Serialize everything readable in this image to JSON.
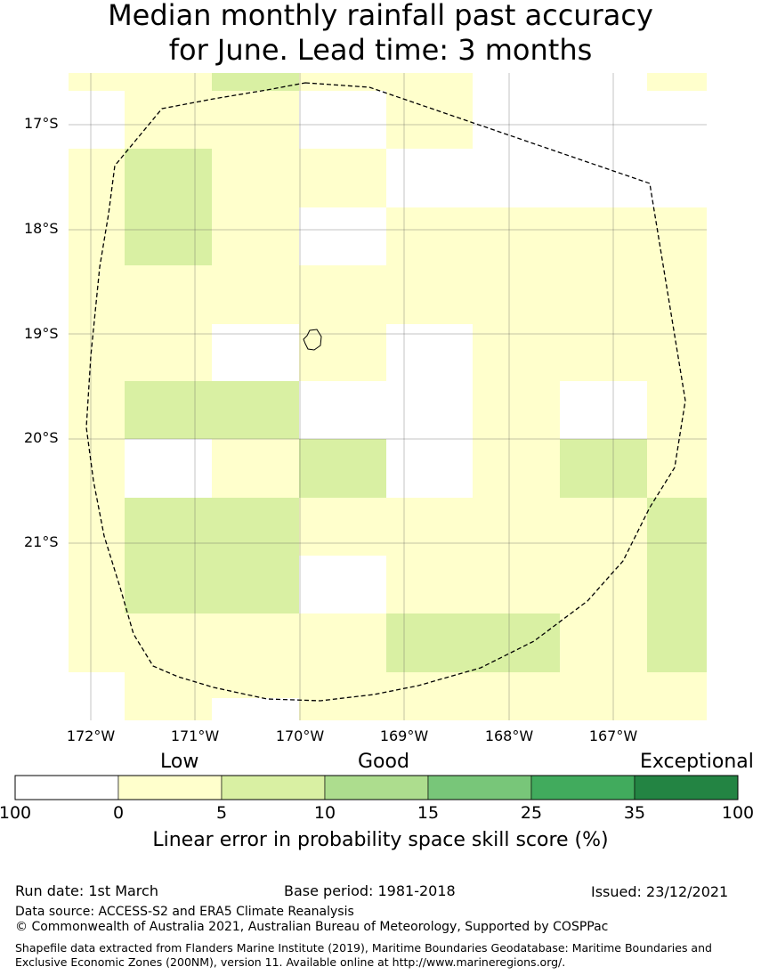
{
  "title": {
    "line1": "Median monthly rainfall past accuracy",
    "line2": "for June. Lead time: 3 months"
  },
  "map": {
    "latitude_labels": [
      "17°S",
      "18°S",
      "19°S",
      "20°S",
      "21°S"
    ],
    "longitude_labels": [
      "172°W",
      "171°W",
      "170°W",
      "169°W",
      "168°W",
      "167°W"
    ],
    "colors": {
      "none": "#ffffff",
      "low": "#ffffcc",
      "light": "#d9f0a3",
      "mid": "#addd8e",
      "good": "#78c679",
      "strong": "#41ab5d",
      "exceptional": "#238443"
    }
  },
  "legend": {
    "categories": {
      "low": "Low",
      "good": "Good",
      "exceptional": "Exceptional"
    },
    "ticks": [
      "100",
      "0",
      "5",
      "10",
      "15",
      "25",
      "35",
      "100"
    ],
    "colors": [
      "#ffffff",
      "#ffffcc",
      "#d9f0a3",
      "#addd8e",
      "#78c679",
      "#41ab5d",
      "#238443"
    ],
    "title": "Linear error in probability space skill score (%)"
  },
  "footer": {
    "run_date": "Run date: 1st March",
    "base_period": "Base period: 1981-2018",
    "issued": "Issued: 23/12/2021",
    "data_source": "Data source: ACCESS-S2 and ERA5 Climate Reanalysis",
    "copyright": "© Commonwealth of Australia 2021, Australian Bureau of Meteorology, Supported by COSPPac",
    "shapefile": "Shapefile data extracted from Flanders Marine Institute (2019), Maritime Boundaries Geodatabase: Maritime Boundaries and Exclusive Economic Zones (200NM), version 11. Available online at http://www.marineregions.org/."
  }
}
